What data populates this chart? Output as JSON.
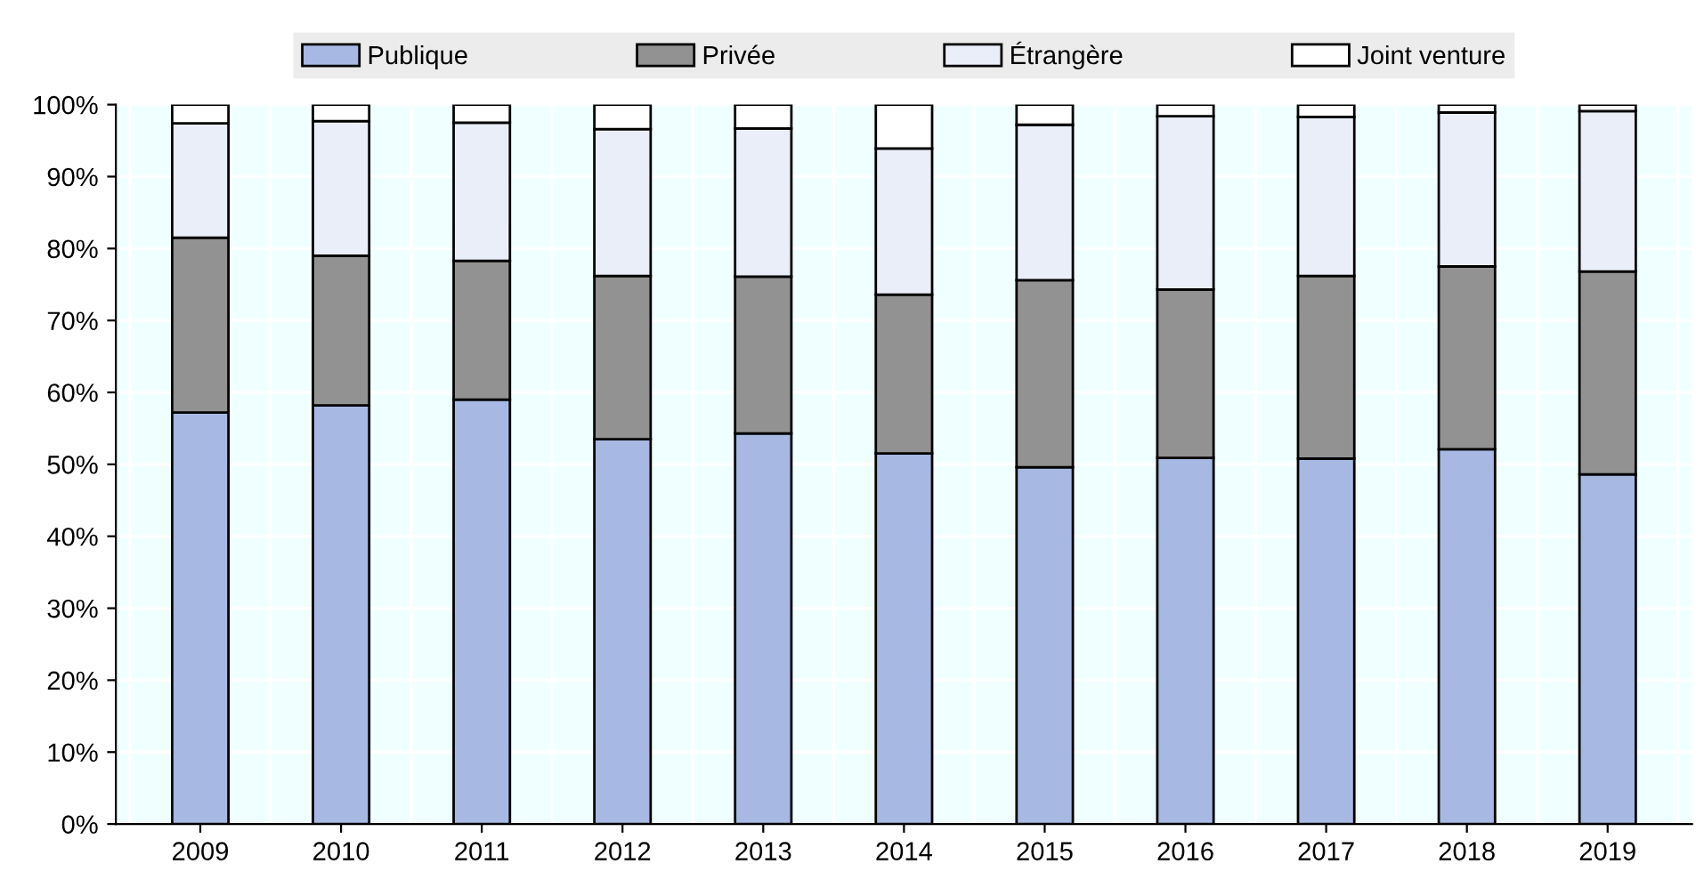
{
  "chart_data": {
    "type": "bar",
    "stacked": true,
    "categories": [
      "2009",
      "2010",
      "2011",
      "2012",
      "2013",
      "2014",
      "2015",
      "2016",
      "2017",
      "2018",
      "2019"
    ],
    "series": [
      {
        "name": "Publique",
        "color": "#a7b9e3",
        "values": [
          57.2,
          58.2,
          59.0,
          53.5,
          54.3,
          51.5,
          49.6,
          50.9,
          50.8,
          52.1,
          48.6
        ]
      },
      {
        "name": "Privée",
        "color": "#929292",
        "values": [
          24.3,
          20.8,
          19.3,
          22.7,
          21.8,
          22.1,
          26.0,
          23.4,
          25.4,
          25.4,
          28.2
        ]
      },
      {
        "name": "Étrangère",
        "color": "#eaeef8",
        "values": [
          15.9,
          18.7,
          19.2,
          20.4,
          20.6,
          20.3,
          21.6,
          24.1,
          22.1,
          21.4,
          22.3
        ]
      },
      {
        "name": "Joint venture",
        "color": "#ffffff",
        "values": [
          2.6,
          2.3,
          2.5,
          3.4,
          3.3,
          6.1,
          2.8,
          1.6,
          1.7,
          1.1,
          0.9
        ]
      }
    ],
    "ylim": [
      0,
      100
    ],
    "yticks": [
      {
        "value": 0,
        "label": "0%"
      },
      {
        "value": 10,
        "label": "10%"
      },
      {
        "value": 20,
        "label": "20%"
      },
      {
        "value": 30,
        "label": "30%"
      },
      {
        "value": 40,
        "label": "40%"
      },
      {
        "value": 50,
        "label": "50%"
      },
      {
        "value": 60,
        "label": "60%"
      },
      {
        "value": 70,
        "label": "70%"
      },
      {
        "value": 80,
        "label": "80%"
      },
      {
        "value": 90,
        "label": "90%"
      },
      {
        "value": 100,
        "label": "100%"
      }
    ],
    "grid": "y",
    "legend": "top"
  }
}
